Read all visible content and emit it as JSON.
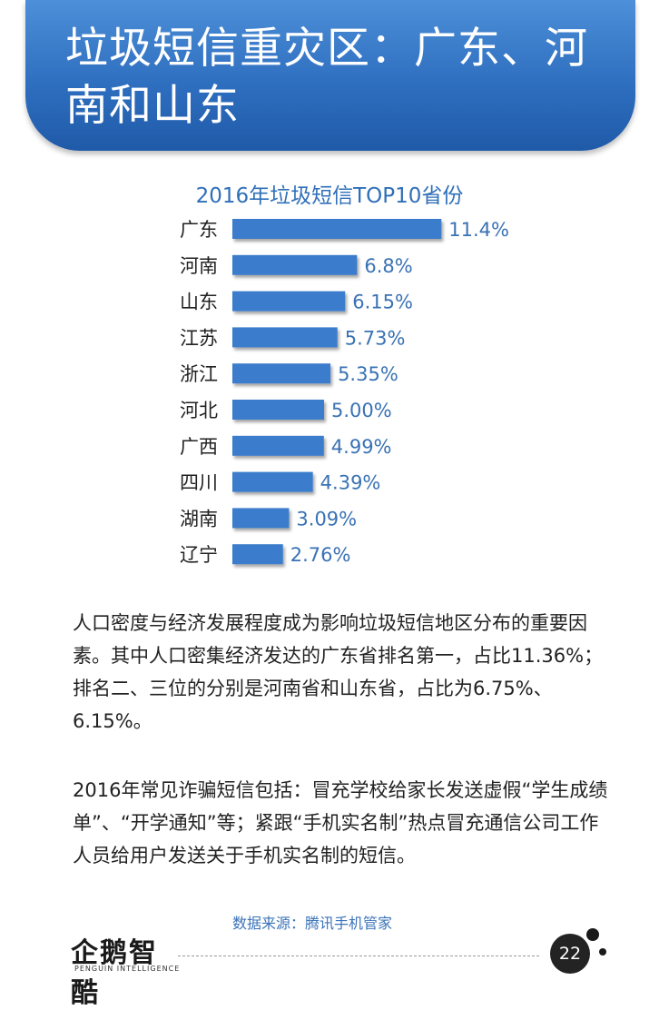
{
  "header": {
    "title": "垃圾短信重灾区：广东、河南和山东"
  },
  "chart_data": {
    "type": "bar",
    "orientation": "horizontal",
    "title": "2016年垃圾短信TOP10省份",
    "categories": [
      "广东",
      "河南",
      "山东",
      "江苏",
      "浙江",
      "河北",
      "广西",
      "四川",
      "湖南",
      "辽宁"
    ],
    "values": [
      11.4,
      6.8,
      6.15,
      5.73,
      5.35,
      5.0,
      4.99,
      4.39,
      3.09,
      2.76
    ],
    "value_labels": [
      "11.4%",
      "6.8%",
      "6.15%",
      "5.73%",
      "5.35%",
      "5.00%",
      "4.99%",
      "4.39%",
      "3.09%",
      "2.76%"
    ],
    "unit": "%",
    "xlabel": "",
    "ylabel": "",
    "bar_color": "#3a7ccc",
    "label_color": "#3a72b4",
    "grid": false
  },
  "body": {
    "paragraph1": "人口密度与经济发展程度成为影响垃圾短信地区分布的重要因素。其中人口密集经济发达的广东省排名第一，占比11.36%；排名二、三位的分别是河南省和山东省，占比为6.75%、6.15%。",
    "paragraph2": "2016年常见诈骗短信包括：冒充学校给家长发送虚假“学生成绩单”、“开学通知”等；紧跟“手机实名制”热点冒充通信公司工作人员给用户发送关于手机实名制的短信。"
  },
  "footer": {
    "source": "数据来源：腾讯手机管家",
    "logo_text": "企鹅智酷",
    "logo_subtitle": "PENGUIN INTELLIGENCE",
    "page_number": "22"
  },
  "colors": {
    "banner": "#2f6fc0",
    "accent": "#3a7ccc"
  }
}
